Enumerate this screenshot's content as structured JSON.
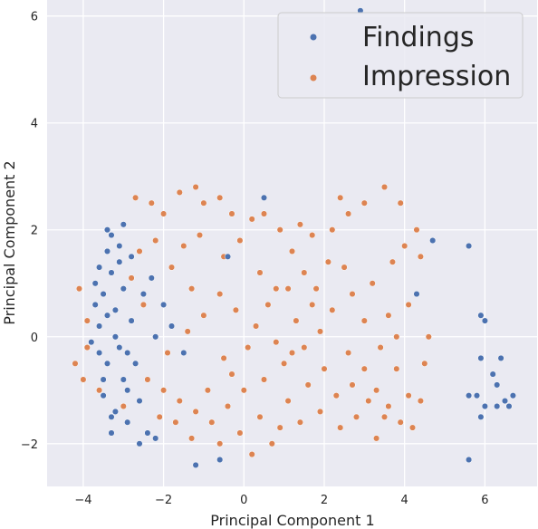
{
  "chart_data": {
    "type": "scatter",
    "xlabel": "Principal Component 1",
    "ylabel": "Principal Component 2",
    "xlim": [
      -4.9,
      7.3
    ],
    "ylim": [
      -2.8,
      6.3
    ],
    "xticks": [
      -4,
      -2,
      0,
      2,
      4,
      6
    ],
    "yticks": [
      -2,
      0,
      2,
      4,
      6
    ],
    "grid": true,
    "legend_position": "top-right",
    "series": [
      {
        "name": "Findings",
        "color": "#4c72b0",
        "points": [
          [
            -3.4,
            1.6
          ],
          [
            -3.3,
            1.2
          ],
          [
            -3.5,
            0.8
          ],
          [
            -3.2,
            0.5
          ],
          [
            -3.6,
            0.2
          ],
          [
            -3.1,
            -0.2
          ],
          [
            -3.4,
            -0.5
          ],
          [
            -3.0,
            -0.8
          ],
          [
            -3.5,
            -1.1
          ],
          [
            -3.2,
            -1.4
          ],
          [
            -2.9,
            -1.6
          ],
          [
            -3.3,
            1.9
          ],
          [
            -3.0,
            2.1
          ],
          [
            -3.4,
            2.0
          ],
          [
            -3.7,
            1.0
          ],
          [
            -3.6,
            -0.3
          ],
          [
            -3.0,
            0.9
          ],
          [
            -2.8,
            0.3
          ],
          [
            -2.7,
            -0.5
          ],
          [
            -2.6,
            -1.2
          ],
          [
            -2.4,
            -1.8
          ],
          [
            -2.2,
            -1.9
          ],
          [
            -2.0,
            0.6
          ],
          [
            -2.3,
            1.1
          ],
          [
            -1.8,
            0.2
          ],
          [
            -1.5,
            -0.3
          ],
          [
            -1.2,
            -2.4
          ],
          [
            -0.6,
            -2.3
          ],
          [
            0.5,
            2.6
          ],
          [
            -0.4,
            1.5
          ],
          [
            4.7,
            1.8
          ],
          [
            5.6,
            1.7
          ],
          [
            4.3,
            0.8
          ],
          [
            5.9,
            0.4
          ],
          [
            6.0,
            0.3
          ],
          [
            5.9,
            -0.4
          ],
          [
            6.4,
            -0.4
          ],
          [
            6.2,
            -0.7
          ],
          [
            6.3,
            -0.9
          ],
          [
            6.7,
            -1.1
          ],
          [
            5.6,
            -1.1
          ],
          [
            5.8,
            -1.1
          ],
          [
            6.5,
            -1.2
          ],
          [
            6.3,
            -1.3
          ],
          [
            6.6,
            -1.3
          ],
          [
            6.0,
            -1.3
          ],
          [
            5.9,
            -1.5
          ],
          [
            5.6,
            -2.3
          ],
          [
            2.9,
            6.1
          ],
          [
            -3.8,
            -0.1
          ],
          [
            -3.1,
            1.4
          ],
          [
            -2.9,
            -1.0
          ],
          [
            -3.5,
            -0.8
          ],
          [
            -3.2,
            0.0
          ],
          [
            -3.3,
            -1.8
          ],
          [
            -2.6,
            -2.0
          ],
          [
            -3.1,
            1.7
          ],
          [
            -3.6,
            1.3
          ],
          [
            -2.8,
            1.5
          ],
          [
            -2.5,
            0.8
          ],
          [
            -2.2,
            0.0
          ],
          [
            -2.9,
            -0.3
          ],
          [
            -3.4,
            0.4
          ],
          [
            -3.7,
            0.6
          ],
          [
            -3.3,
            -1.5
          ]
        ]
      },
      {
        "name": "Impression",
        "color": "#dd8452",
        "points": [
          [
            -4.1,
            0.9
          ],
          [
            -4.2,
            -0.5
          ],
          [
            -4.0,
            -0.8
          ],
          [
            -3.9,
            0.3
          ],
          [
            -2.7,
            2.6
          ],
          [
            -2.3,
            2.5
          ],
          [
            -2.0,
            2.3
          ],
          [
            -1.6,
            2.7
          ],
          [
            -1.2,
            2.8
          ],
          [
            -1.0,
            2.5
          ],
          [
            -0.6,
            2.6
          ],
          [
            -0.3,
            2.3
          ],
          [
            0.2,
            2.2
          ],
          [
            0.5,
            2.3
          ],
          [
            -0.1,
            1.8
          ],
          [
            -0.5,
            1.5
          ],
          [
            -1.1,
            1.9
          ],
          [
            -1.5,
            1.7
          ],
          [
            -2.2,
            1.8
          ],
          [
            -2.6,
            1.6
          ],
          [
            0.4,
            1.2
          ],
          [
            0.8,
            0.9
          ],
          [
            1.2,
            1.6
          ],
          [
            1.5,
            1.2
          ],
          [
            1.8,
            0.9
          ],
          [
            2.1,
            1.4
          ],
          [
            2.5,
            1.3
          ],
          [
            2.2,
            0.5
          ],
          [
            1.9,
            0.1
          ],
          [
            1.5,
            -0.2
          ],
          [
            1.0,
            -0.5
          ],
          [
            0.5,
            -0.8
          ],
          [
            0.0,
            -1.0
          ],
          [
            -0.4,
            -1.3
          ],
          [
            -0.8,
            -1.6
          ],
          [
            -1.2,
            -1.4
          ],
          [
            -1.6,
            -1.2
          ],
          [
            -2.0,
            -1.0
          ],
          [
            -2.4,
            -0.8
          ],
          [
            -1.9,
            -0.3
          ],
          [
            -1.4,
            0.1
          ],
          [
            -1.0,
            0.4
          ],
          [
            -0.6,
            0.8
          ],
          [
            -0.2,
            0.5
          ],
          [
            0.3,
            0.2
          ],
          [
            0.8,
            -0.1
          ],
          [
            1.3,
            0.3
          ],
          [
            2.6,
            -0.3
          ],
          [
            3.0,
            -0.6
          ],
          [
            3.3,
            -1.0
          ],
          [
            3.6,
            -1.3
          ],
          [
            3.9,
            -1.6
          ],
          [
            4.1,
            -1.1
          ],
          [
            3.8,
            -0.6
          ],
          [
            3.4,
            -0.2
          ],
          [
            3.0,
            0.3
          ],
          [
            2.7,
            0.8
          ],
          [
            3.2,
            1.0
          ],
          [
            3.7,
            1.4
          ],
          [
            4.0,
            1.7
          ],
          [
            4.3,
            2.0
          ],
          [
            4.4,
            1.5
          ],
          [
            3.9,
            2.5
          ],
          [
            3.5,
            2.8
          ],
          [
            3.0,
            2.5
          ],
          [
            2.6,
            2.3
          ],
          [
            2.4,
            2.6
          ],
          [
            2.2,
            2.0
          ],
          [
            4.6,
            0.0
          ],
          [
            4.5,
            -0.5
          ],
          [
            4.4,
            -1.2
          ],
          [
            4.2,
            -1.7
          ],
          [
            3.5,
            -1.5
          ],
          [
            3.1,
            -1.2
          ],
          [
            2.7,
            -0.9
          ],
          [
            2.3,
            -1.1
          ],
          [
            1.9,
            -1.4
          ],
          [
            1.4,
            -1.6
          ],
          [
            0.9,
            -1.7
          ],
          [
            0.4,
            -1.5
          ],
          [
            -0.1,
            -1.8
          ],
          [
            -0.6,
            -2.0
          ],
          [
            -0.9,
            -1.0
          ],
          [
            -0.5,
            -0.4
          ],
          [
            0.1,
            -0.2
          ],
          [
            0.6,
            0.6
          ],
          [
            1.1,
            0.9
          ],
          [
            1.7,
            0.6
          ],
          [
            2.0,
            -0.6
          ],
          [
            1.6,
            -0.9
          ],
          [
            1.1,
            -1.2
          ],
          [
            0.2,
            -2.2
          ],
          [
            -1.3,
            -1.9
          ],
          [
            -1.7,
            -1.6
          ],
          [
            -2.5,
            0.6
          ],
          [
            -2.8,
            1.1
          ],
          [
            -1.8,
            1.3
          ],
          [
            -1.3,
            0.9
          ],
          [
            0.9,
            2.0
          ],
          [
            1.7,
            1.9
          ],
          [
            4.1,
            0.6
          ],
          [
            3.6,
            0.4
          ],
          [
            1.4,
            2.1
          ],
          [
            2.8,
            -1.5
          ],
          [
            3.3,
            -1.9
          ],
          [
            -3.0,
            -1.3
          ],
          [
            -3.6,
            -1.0
          ],
          [
            -3.9,
            -0.2
          ],
          [
            -2.1,
            -1.5
          ],
          [
            0.7,
            -2.0
          ],
          [
            2.4,
            -1.7
          ],
          [
            3.8,
            0.0
          ],
          [
            1.2,
            -0.3
          ],
          [
            -0.3,
            -0.7
          ]
        ]
      }
    ]
  }
}
